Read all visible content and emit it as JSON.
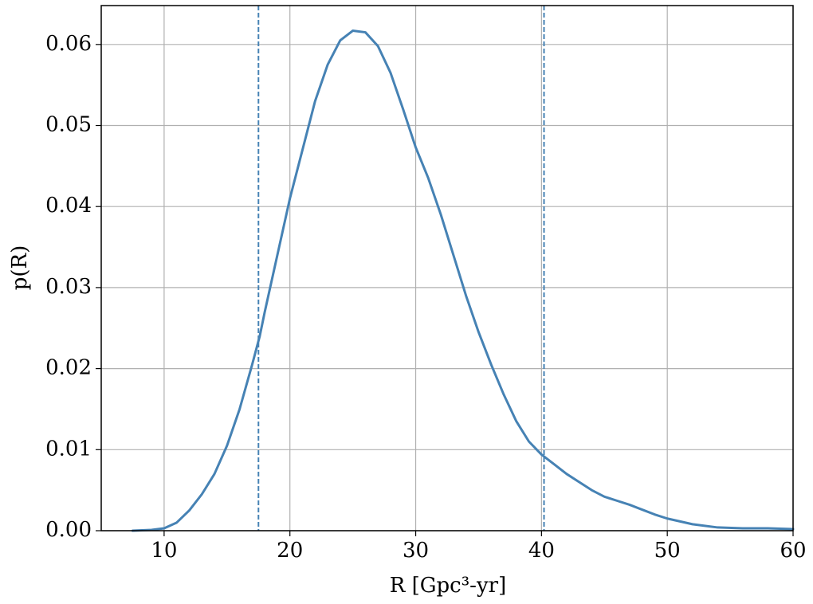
{
  "chart_data": {
    "type": "line",
    "xlabel": "R [Gpc³-yr]",
    "ylabel": "p(R)",
    "x": [
      7.5,
      9,
      10,
      11,
      12,
      13,
      14,
      15,
      16,
      17,
      17.6,
      18,
      19,
      20,
      21,
      22,
      23,
      24,
      25,
      26,
      27,
      28,
      29,
      30,
      31,
      32,
      33,
      34,
      35,
      36,
      37,
      38,
      39,
      40,
      41,
      42,
      43,
      44,
      45,
      46,
      47,
      48,
      49,
      50,
      52,
      54,
      56,
      58,
      60
    ],
    "values": [
      0,
      0.0001,
      0.0003,
      0.001,
      0.0025,
      0.0045,
      0.007,
      0.0105,
      0.015,
      0.0205,
      0.024,
      0.027,
      0.034,
      0.041,
      0.047,
      0.053,
      0.0575,
      0.0605,
      0.0617,
      0.0615,
      0.0598,
      0.0565,
      0.052,
      0.0473,
      0.0435,
      0.039,
      0.034,
      0.029,
      0.0245,
      0.0205,
      0.0168,
      0.0135,
      0.011,
      0.0094,
      0.0082,
      0.007,
      0.006,
      0.005,
      0.0042,
      0.0037,
      0.0032,
      0.0026,
      0.002,
      0.0015,
      0.0008,
      0.0004,
      0.0003,
      0.0003,
      0.0002
    ],
    "color": "#4682b4",
    "vlines": [
      17.5,
      40.2
    ],
    "xlim": [
      5,
      60
    ],
    "ylim": [
      0,
      0.0648
    ],
    "xticks": [
      10,
      20,
      30,
      40,
      50,
      60
    ],
    "yticks": [
      {
        "value": 0,
        "label": "0.00"
      },
      {
        "value": 0.01,
        "label": "0.01"
      },
      {
        "value": 0.02,
        "label": "0.02"
      },
      {
        "value": 0.03,
        "label": "0.03"
      },
      {
        "value": 0.04,
        "label": "0.04"
      },
      {
        "value": 0.05,
        "label": "0.05"
      },
      {
        "value": 0.06,
        "label": "0.06"
      }
    ],
    "grid": true
  }
}
